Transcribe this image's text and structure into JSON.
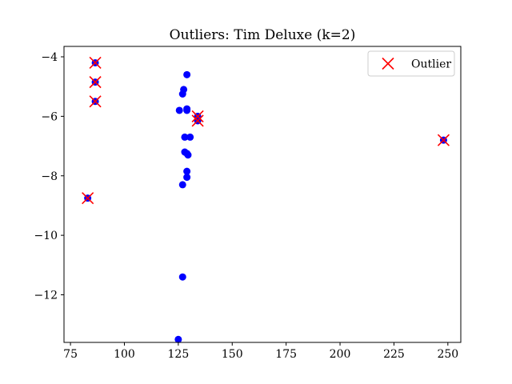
{
  "chart_data": {
    "type": "scatter",
    "title": "Outliers: Tim Deluxe (k=2)",
    "xlabel": "",
    "ylabel": "",
    "xlim": [
      72,
      256
    ],
    "ylim": [
      -13.6,
      -3.65
    ],
    "xticks": [
      75,
      100,
      125,
      150,
      175,
      200,
      225,
      250
    ],
    "yticks": [
      -12,
      -10,
      -8,
      -6,
      -4
    ],
    "ytick_labels": [
      "−12",
      "−10",
      "−8",
      "−6",
      "−4"
    ],
    "grid": false,
    "legend": {
      "placement": "top-right",
      "entries": [
        "Outlier"
      ]
    },
    "colors": {
      "points": "#0000ff",
      "outlier_marker": "#ff0000"
    },
    "series": [
      {
        "kind": "points",
        "points": [
          [
            86.5,
            -4.2
          ],
          [
            86.5,
            -4.85
          ],
          [
            86.5,
            -5.5
          ],
          [
            83,
            -8.75
          ],
          [
            129,
            -4.6
          ],
          [
            127.5,
            -5.1
          ],
          [
            127,
            -5.25
          ],
          [
            125.5,
            -5.8
          ],
          [
            129,
            -5.75
          ],
          [
            129,
            -5.8
          ],
          [
            128,
            -6.7
          ],
          [
            130.5,
            -6.7
          ],
          [
            128,
            -7.2
          ],
          [
            129,
            -7.25
          ],
          [
            129.5,
            -7.3
          ],
          [
            129,
            -7.85
          ],
          [
            129,
            -8.05
          ],
          [
            127,
            -8.3
          ],
          [
            127,
            -11.4
          ],
          [
            125,
            -13.5
          ],
          [
            134,
            -6.0
          ],
          [
            134,
            -6.15
          ],
          [
            248,
            -6.8
          ]
        ]
      },
      {
        "name": "Outlier",
        "kind": "outliers",
        "points": [
          [
            86.5,
            -4.2
          ],
          [
            86.5,
            -4.85
          ],
          [
            86.5,
            -5.5
          ],
          [
            83,
            -8.75
          ],
          [
            134,
            -6.0
          ],
          [
            134,
            -6.15
          ],
          [
            248,
            -6.8
          ]
        ]
      }
    ]
  }
}
